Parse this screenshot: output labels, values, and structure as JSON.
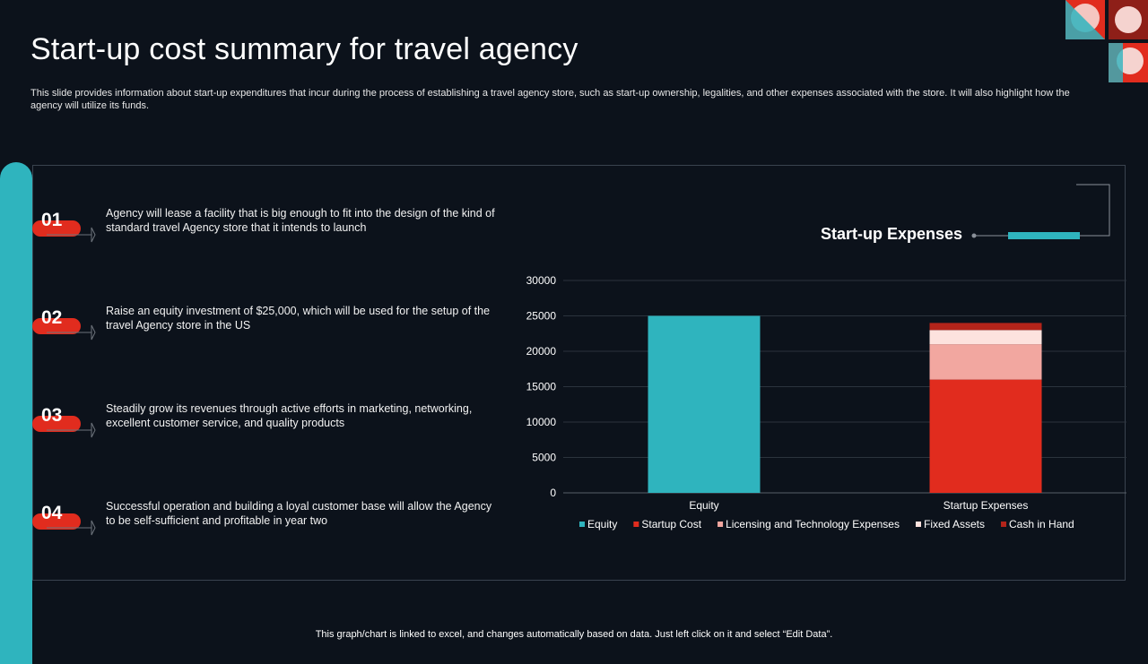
{
  "slide": {
    "title": "Start-up cost summary for travel agency",
    "subtitle": "This slide provides information about start-up expenditures that incur during the process of establishing a travel agency store, such as start-up ownership, legalities, and other expenses associated with the store. It will also highlight how the agency will utilize its funds.",
    "footer": "This graph/chart is linked to excel, and changes automatically based on data. Just left click on it and select “Edit Data”."
  },
  "points": [
    {
      "number": "01",
      "text": "Agency will lease a facility that is big enough to fit into the design of the kind of standard travel Agency store that it intends to launch"
    },
    {
      "number": "02",
      "text": "Raise an equity investment of $25,000, which will be used for the setup of the travel Agency store in the US"
    },
    {
      "number": "03",
      "text": "Steadily grow its revenues through active efforts in marketing, networking, excellent customer service, and quality products"
    },
    {
      "number": "04",
      "text": "Successful operation and building a loyal customer base will allow the Agency to be self-sufficient and profitable in year two"
    }
  ],
  "expenses_heading": "Start-up Expenses",
  "colors": {
    "accent_teal": "#2fb4be",
    "accent_red": "#e12c1e",
    "background": "#0c121b"
  },
  "chart_data": {
    "type": "bar",
    "stacked": true,
    "categories": [
      "Equity",
      "Startup Expenses"
    ],
    "ylim": [
      0,
      30000
    ],
    "yticks": [
      0,
      5000,
      10000,
      15000,
      20000,
      25000,
      30000
    ],
    "grid": true,
    "legend_position": "bottom",
    "series": [
      {
        "name": "Equity",
        "color": "#2fb4be",
        "values": [
          25000,
          0
        ]
      },
      {
        "name": "Startup Cost",
        "color": "#e12c1e",
        "values": [
          0,
          16000
        ]
      },
      {
        "name": "Licensing and Technology Expenses",
        "color": "#f2a7a0",
        "values": [
          0,
          5000
        ]
      },
      {
        "name": "Fixed Assets",
        "color": "#fde2de",
        "values": [
          0,
          2000
        ]
      },
      {
        "name": "Cash in Hand",
        "color": "#b3241a",
        "values": [
          0,
          1000
        ]
      }
    ]
  }
}
